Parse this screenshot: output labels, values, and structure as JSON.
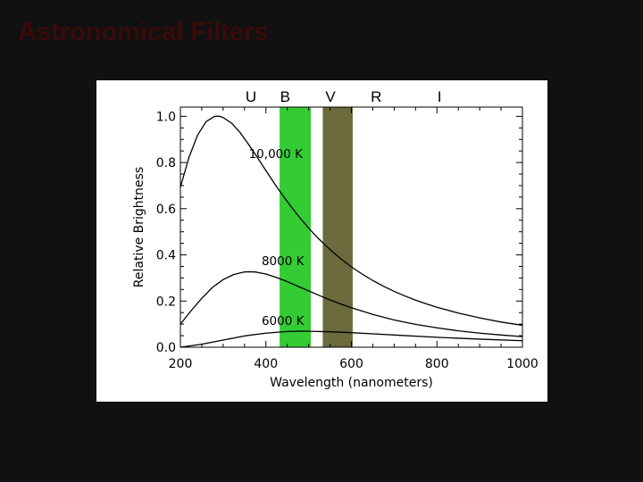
{
  "slide": {
    "title": "Astronomical Filters"
  },
  "chart_data": {
    "type": "line",
    "xlabel": "Wavelength (nanometers)",
    "ylabel": "Relative Brightness",
    "xlim": [
      200,
      1000
    ],
    "ylim": [
      0.0,
      1.04
    ],
    "x_ticks": [
      200,
      400,
      600,
      800,
      1000
    ],
    "y_ticks": [
      0.0,
      0.2,
      0.4,
      0.6,
      0.8,
      1.0
    ],
    "x_tick_labels": [
      "200",
      "400",
      "600",
      "800",
      "1000"
    ],
    "y_tick_labels": [
      "0.0",
      "0.2",
      "0.4",
      "0.6",
      "0.8",
      "1.0"
    ],
    "grid": false,
    "filters": [
      {
        "letter": "U",
        "x": 365
      },
      {
        "letter": "B",
        "x": 445
      },
      {
        "letter": "V",
        "x": 551
      },
      {
        "letter": "R",
        "x": 658
      },
      {
        "letter": "I",
        "x": 806
      }
    ],
    "bands": [
      {
        "x0": 432,
        "x1": 505,
        "color": "#33cc33"
      },
      {
        "x0": 533,
        "x1": 603,
        "color": "#6b6b3d"
      }
    ],
    "series": [
      {
        "name": "10,000 K",
        "x": [
          200,
          220,
          240,
          260,
          280,
          290,
          300,
          320,
          340,
          360,
          380,
          400,
          420,
          440,
          460,
          480,
          500,
          520,
          540,
          560,
          580,
          600,
          625,
          650,
          675,
          700,
          725,
          750,
          775,
          800,
          850,
          900,
          950,
          1000
        ],
        "values": [
          0.693,
          0.822,
          0.918,
          0.977,
          1.0,
          1.001,
          0.995,
          0.97,
          0.929,
          0.877,
          0.822,
          0.765,
          0.709,
          0.656,
          0.606,
          0.559,
          0.516,
          0.476,
          0.44,
          0.407,
          0.376,
          0.348,
          0.317,
          0.289,
          0.264,
          0.242,
          0.222,
          0.204,
          0.188,
          0.173,
          0.148,
          0.127,
          0.109,
          0.095
        ]
      },
      {
        "name": "8000 K",
        "x": [
          200,
          225,
          250,
          275,
          300,
          325,
          350,
          362,
          375,
          400,
          425,
          450,
          475,
          500,
          525,
          550,
          575,
          600,
          650,
          700,
          750,
          800,
          850,
          900,
          950,
          1000
        ],
        "values": [
          0.1,
          0.158,
          0.212,
          0.259,
          0.293,
          0.315,
          0.326,
          0.327,
          0.326,
          0.317,
          0.302,
          0.284,
          0.264,
          0.244,
          0.224,
          0.205,
          0.187,
          0.171,
          0.142,
          0.118,
          0.099,
          0.084,
          0.071,
          0.061,
          0.053,
          0.046
        ]
      },
      {
        "name": "6000 K",
        "x": [
          200,
          250,
          300,
          350,
          400,
          450,
          483,
          500,
          550,
          600,
          650,
          700,
          800,
          900,
          1000
        ],
        "values": [
          0.0,
          0.013,
          0.031,
          0.049,
          0.061,
          0.068,
          0.0695,
          0.069,
          0.067,
          0.063,
          0.058,
          0.053,
          0.043,
          0.035,
          0.028
        ]
      }
    ],
    "curve_labels": [
      {
        "text": "10,000 K",
        "x": 360,
        "y": 0.82
      },
      {
        "text": "8000 K",
        "x": 390,
        "y": 0.355
      },
      {
        "text": "6000 K",
        "x": 390,
        "y": 0.097
      }
    ],
    "colors": {
      "curve": "#000000",
      "axis": "#000000"
    }
  }
}
